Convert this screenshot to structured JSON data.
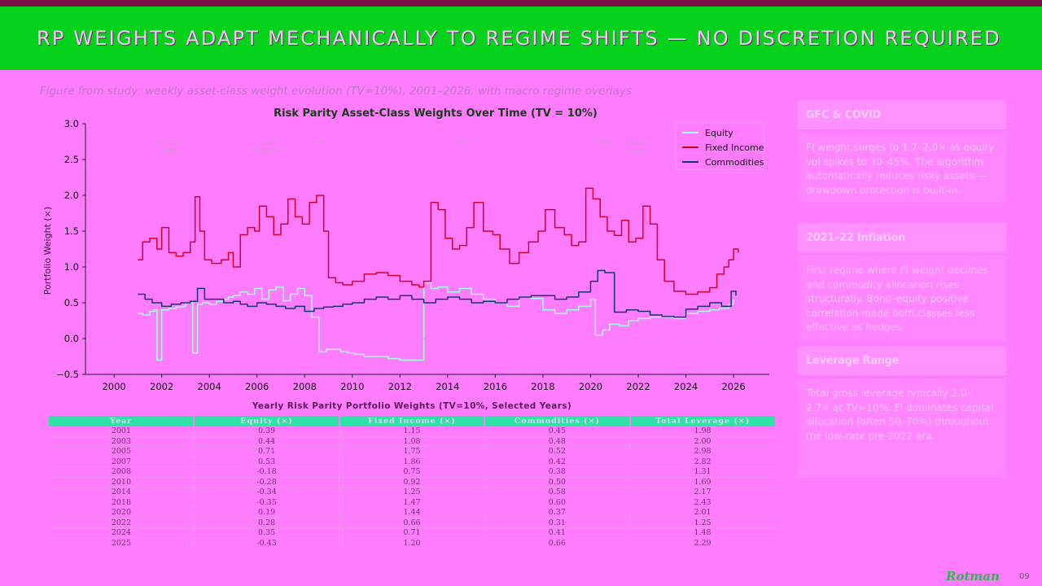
{
  "slide": {
    "title": "RP WEIGHTS ADAPT MECHANICALLY TO REGIME SHIFTS — NO DISCRETION REQUIRED",
    "caption": "Figure from study: weekly asset-class weight evolution (TV=10%), 2001–2026, with macro regime overlays",
    "logo": "Rotman",
    "page_number": "09"
  },
  "colors": {
    "background": "#ff7cff",
    "header_bar": "#05d21a",
    "top_strip": "#7a1048",
    "equity": "#a8fbe0",
    "fixed_income": "#d1002f",
    "commodities": "#17356b",
    "table_header": "#2fe2a6"
  },
  "chart_data": {
    "type": "line",
    "title": "Risk Parity Asset-Class Weights Over Time (TV = 10%)",
    "xlabel": "",
    "ylabel": "Portfolio Weight (×)",
    "xlim": [
      1998.8,
      2027.5
    ],
    "ylim": [
      -0.5,
      3.0
    ],
    "x_ticks": [
      "2000",
      "2002",
      "2004",
      "2006",
      "2008",
      "2010",
      "2012",
      "2014",
      "2016",
      "2018",
      "2020",
      "2022",
      "2024",
      "2026"
    ],
    "y_ticks": [
      "−0.5",
      "0.0",
      "0.5",
      "1.0",
      "1.5",
      "2.0",
      "2.5",
      "3.0"
    ],
    "grid": false,
    "legend": "top-right",
    "regime_labels": [
      {
        "x": 2002.3,
        "text": "Dot-Com\nCrash"
      },
      {
        "x": 2006.5,
        "text": "Credit\nExpansion"
      },
      {
        "x": 2008.7,
        "text": "GFC"
      },
      {
        "x": 2014.7,
        "text": "QE Era"
      },
      {
        "x": 2020.5,
        "text": "COVID"
      },
      {
        "x": 2021.9,
        "text": "Inflation\nShock"
      }
    ],
    "series": [
      {
        "name": "Equity",
        "color": "#a8fbe0",
        "x": [
          2001.0,
          2001.2,
          2001.5,
          2001.7,
          2001.8,
          2002.0,
          2002.3,
          2002.6,
          2002.9,
          2003.0,
          2003.3,
          2003.5,
          2003.7,
          2004.0,
          2004.3,
          2004.6,
          2004.8,
          2005.0,
          2005.3,
          2005.6,
          2005.9,
          2006.2,
          2006.5,
          2006.8,
          2007.1,
          2007.4,
          2007.7,
          2008.0,
          2008.3,
          2008.6,
          2008.9,
          2009.2,
          2009.5,
          2009.8,
          2010.1,
          2010.5,
          2011.0,
          2011.5,
          2012.0,
          2012.5,
          2013.0,
          2013.3,
          2013.6,
          2014.0,
          2014.5,
          2015.0,
          2015.5,
          2016.0,
          2016.5,
          2017.0,
          2017.5,
          2018.0,
          2018.5,
          2019.0,
          2019.5,
          2020.0,
          2020.2,
          2020.5,
          2020.8,
          2021.2,
          2021.6,
          2022.0,
          2022.5,
          2023.0,
          2023.5,
          2024.0,
          2024.5,
          2025.0,
          2025.4,
          2025.8,
          2026.0
        ],
        "y": [
          0.35,
          0.33,
          0.38,
          0.4,
          -0.3,
          0.4,
          0.42,
          0.44,
          0.45,
          0.5,
          -0.2,
          0.48,
          0.5,
          0.48,
          0.52,
          0.55,
          0.58,
          0.6,
          0.65,
          0.62,
          0.7,
          0.55,
          0.68,
          0.72,
          0.53,
          0.62,
          0.7,
          0.6,
          0.3,
          -0.18,
          -0.15,
          -0.15,
          -0.18,
          -0.2,
          -0.22,
          -0.25,
          -0.25,
          -0.28,
          -0.3,
          -0.3,
          0.78,
          0.7,
          0.72,
          0.65,
          0.7,
          0.62,
          0.55,
          0.5,
          0.45,
          0.58,
          0.56,
          0.4,
          0.35,
          0.4,
          0.45,
          0.55,
          0.05,
          0.12,
          0.2,
          0.18,
          0.25,
          0.28,
          0.3,
          0.3,
          0.28,
          0.35,
          0.38,
          0.4,
          0.42,
          0.48,
          0.55
        ]
      },
      {
        "name": "Fixed Income",
        "color": "#d1002f",
        "x": [
          2001.0,
          2001.2,
          2001.5,
          2001.8,
          2002.0,
          2002.3,
          2002.6,
          2002.9,
          2003.2,
          2003.4,
          2003.6,
          2003.8,
          2004.1,
          2004.5,
          2004.8,
          2005.0,
          2005.3,
          2005.6,
          2005.9,
          2006.1,
          2006.4,
          2006.7,
          2007.0,
          2007.3,
          2007.6,
          2007.9,
          2008.2,
          2008.5,
          2008.8,
          2009.0,
          2009.3,
          2009.6,
          2010.0,
          2010.5,
          2011.0,
          2011.5,
          2012.0,
          2012.5,
          2012.8,
          2013.0,
          2013.3,
          2013.6,
          2013.9,
          2014.2,
          2014.5,
          2014.8,
          2015.1,
          2015.5,
          2015.9,
          2016.2,
          2016.6,
          2017.0,
          2017.4,
          2017.8,
          2018.1,
          2018.5,
          2018.9,
          2019.2,
          2019.5,
          2019.8,
          2020.1,
          2020.4,
          2020.7,
          2021.0,
          2021.3,
          2021.6,
          2021.9,
          2022.2,
          2022.5,
          2022.8,
          2023.1,
          2023.5,
          2024.0,
          2024.5,
          2025.0,
          2025.3,
          2025.6,
          2025.8,
          2026.0,
          2026.2
        ],
        "y": [
          1.1,
          1.35,
          1.4,
          1.25,
          1.55,
          1.2,
          1.15,
          1.2,
          1.35,
          1.98,
          1.5,
          1.1,
          1.05,
          1.1,
          1.2,
          1.0,
          1.45,
          1.55,
          1.5,
          1.85,
          1.7,
          1.45,
          1.6,
          1.95,
          1.7,
          1.6,
          1.9,
          2.0,
          1.5,
          0.85,
          0.78,
          0.75,
          0.8,
          0.9,
          0.92,
          0.88,
          0.8,
          0.75,
          0.72,
          0.8,
          1.9,
          1.8,
          1.4,
          1.25,
          1.3,
          1.55,
          1.9,
          1.5,
          1.45,
          1.25,
          1.05,
          1.2,
          1.35,
          1.5,
          1.8,
          1.55,
          1.45,
          1.3,
          1.35,
          2.1,
          1.95,
          1.7,
          1.5,
          1.44,
          1.65,
          1.35,
          1.4,
          1.85,
          1.6,
          1.1,
          0.8,
          0.66,
          0.62,
          0.65,
          0.71,
          0.9,
          1.0,
          1.1,
          1.25,
          1.2
        ]
      },
      {
        "name": "Commodities",
        "color": "#17356b",
        "x": [
          2001.0,
          2001.3,
          2001.6,
          2002.0,
          2002.4,
          2002.8,
          2003.2,
          2003.5,
          2003.8,
          2004.2,
          2004.6,
          2005.0,
          2005.3,
          2005.6,
          2006.0,
          2006.4,
          2006.8,
          2007.2,
          2007.6,
          2008.0,
          2008.4,
          2008.8,
          2009.2,
          2009.6,
          2010.0,
          2010.5,
          2011.0,
          2011.5,
          2012.0,
          2012.5,
          2013.0,
          2013.5,
          2014.0,
          2014.5,
          2015.0,
          2015.5,
          2016.0,
          2016.5,
          2017.0,
          2017.5,
          2018.0,
          2018.5,
          2019.0,
          2019.5,
          2020.0,
          2020.3,
          2020.6,
          2021.0,
          2021.5,
          2022.0,
          2022.5,
          2023.0,
          2023.5,
          2024.0,
          2024.5,
          2025.0,
          2025.5,
          2025.9,
          2026.1
        ],
        "y": [
          0.62,
          0.55,
          0.5,
          0.45,
          0.48,
          0.5,
          0.52,
          0.7,
          0.55,
          0.55,
          0.5,
          0.52,
          0.48,
          0.45,
          0.5,
          0.48,
          0.45,
          0.42,
          0.45,
          0.38,
          0.42,
          0.44,
          0.45,
          0.48,
          0.5,
          0.55,
          0.58,
          0.55,
          0.6,
          0.55,
          0.5,
          0.55,
          0.58,
          0.55,
          0.5,
          0.52,
          0.5,
          0.55,
          0.58,
          0.6,
          0.6,
          0.55,
          0.58,
          0.65,
          0.8,
          0.95,
          0.92,
          0.37,
          0.4,
          0.38,
          0.33,
          0.31,
          0.3,
          0.41,
          0.45,
          0.5,
          0.45,
          0.66,
          0.6
        ]
      }
    ]
  },
  "table": {
    "title": "Yearly Risk Parity Portfolio Weights (TV=10%, Selected Years)",
    "columns": [
      "Year",
      "Equity (×)",
      "Fixed Income (×)",
      "Commodities (×)",
      "Total Leverage (×)"
    ],
    "rows": [
      [
        "2001",
        "0.39",
        "1.15",
        "0.45",
        "1.98"
      ],
      [
        "2003",
        "0.44",
        "1.08",
        "0.48",
        "2.00"
      ],
      [
        "2005",
        "0.71",
        "1.75",
        "0.52",
        "2.98"
      ],
      [
        "2007",
        "0.53",
        "1.86",
        "0.42",
        "2.82"
      ],
      [
        "2008",
        "-0.18",
        "0.75",
        "0.38",
        "1.31"
      ],
      [
        "2010",
        "-0.28",
        "0.92",
        "0.50",
        "1.69"
      ],
      [
        "2014",
        "-0.34",
        "1.25",
        "0.58",
        "2.17"
      ],
      [
        "2018",
        "-0.35",
        "1.47",
        "0.60",
        "2.43"
      ],
      [
        "2020",
        "0.19",
        "1.44",
        "0.37",
        "2.01"
      ],
      [
        "2022",
        "0.28",
        "0.66",
        "0.31",
        "1.25"
      ],
      [
        "2024",
        "0.35",
        "0.71",
        "0.41",
        "1.48"
      ],
      [
        "2025",
        "-0.43",
        "1.20",
        "0.66",
        "2.29"
      ]
    ]
  },
  "sidebar": {
    "cards": [
      {
        "title": "GFC & COVID",
        "body": "FI weight surges to 1.7–2.0× as equity vol spikes to 30–45%. The algorithm automatically reduces risky assets — drawdown protection is built-in."
      },
      {
        "title": "2021–22 Inflation",
        "body": "First regime where FI weight declines and commodity allocation rises structurally. Bond–equity positive correlation made both classes less effective as hedges."
      },
      {
        "title": "Leverage Range",
        "body": "Total gross leverage typically 2.0–2.7× at TV=10%. FI dominates capital allocation (often 50–70%) throughout the low-rate pre-2022 era."
      }
    ]
  }
}
